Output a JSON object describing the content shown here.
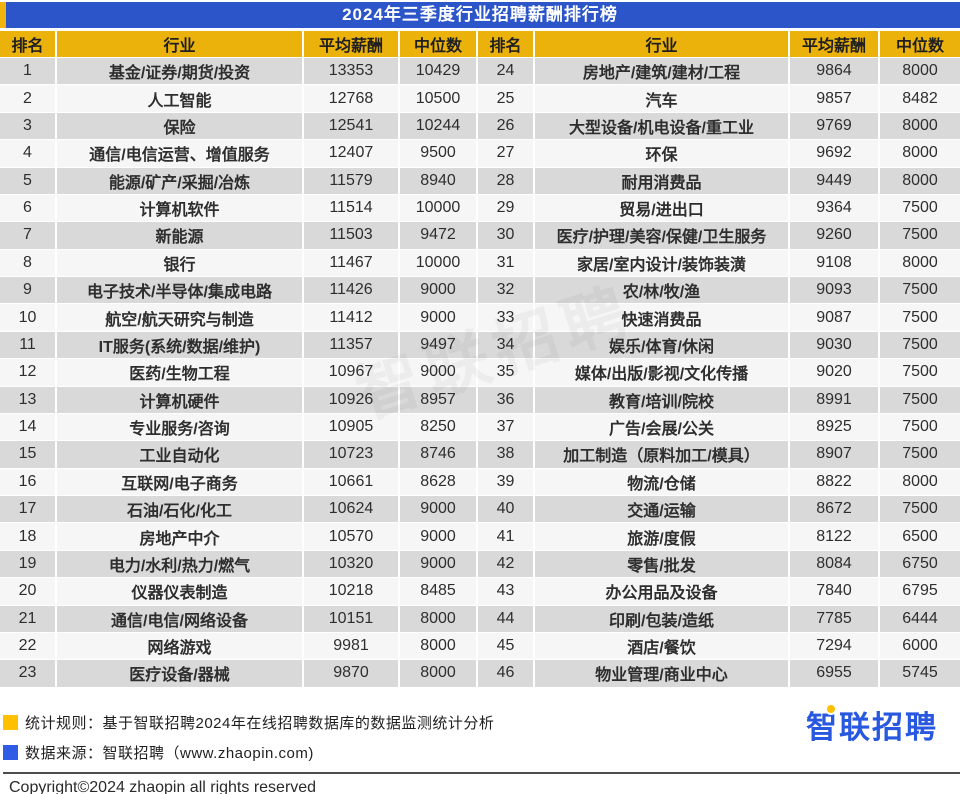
{
  "title": "2024年三季度行业招聘薪酬排行榜",
  "table": {
    "headers": [
      "排名",
      "行业",
      "平均薪酬",
      "中位数"
    ]
  },
  "footer": {
    "legend": [
      {
        "color": "#FFC000",
        "text": "统计规则：基于智联招聘2024年在线招聘数据库的数据监测统计分析"
      },
      {
        "color": "#2F5BE7",
        "text": "数据来源：智联招聘（www.zhaopin.com)"
      }
    ],
    "logo_text": "智联招聘",
    "copyright": "Copyright©2024 zhaopin all rights reserved"
  },
  "watermark_text": "智联招聘",
  "colors": {
    "title_bar": "#2B55C8",
    "header_gold": "#ECB20C",
    "row_odd": "#D9D9D9",
    "row_even": "#F6F6F6",
    "logo_blue": "#2857E0",
    "legend_yellow": "#FFC000",
    "legend_blue": "#2F5BE7"
  },
  "chart_data": {
    "type": "table",
    "title": "2024年三季度行业招聘薪酬排行榜",
    "columns": [
      "排名",
      "行业",
      "平均薪酬",
      "中位数"
    ],
    "layout": "two-column table, ranks 1-23 left, 24-46 right",
    "rows": [
      [
        1,
        "基金/证券/期货/投资",
        13353,
        10429
      ],
      [
        2,
        "人工智能",
        12768,
        10500
      ],
      [
        3,
        "保险",
        12541,
        10244
      ],
      [
        4,
        "通信/电信运营、增值服务",
        12407,
        9500
      ],
      [
        5,
        "能源/矿产/采掘/冶炼",
        11579,
        8940
      ],
      [
        6,
        "计算机软件",
        11514,
        10000
      ],
      [
        7,
        "新能源",
        11503,
        9472
      ],
      [
        8,
        "银行",
        11467,
        10000
      ],
      [
        9,
        "电子技术/半导体/集成电路",
        11426,
        9000
      ],
      [
        10,
        "航空/航天研究与制造",
        11412,
        9000
      ],
      [
        11,
        "IT服务(系统/数据/维护)",
        11357,
        9497
      ],
      [
        12,
        "医药/生物工程",
        10967,
        9000
      ],
      [
        13,
        "计算机硬件",
        10926,
        8957
      ],
      [
        14,
        "专业服务/咨询",
        10905,
        8250
      ],
      [
        15,
        "工业自动化",
        10723,
        8746
      ],
      [
        16,
        "互联网/电子商务",
        10661,
        8628
      ],
      [
        17,
        "石油/石化/化工",
        10624,
        9000
      ],
      [
        18,
        "房地产中介",
        10570,
        9000
      ],
      [
        19,
        "电力/水利/热力/燃气",
        10320,
        9000
      ],
      [
        20,
        "仪器仪表制造",
        10218,
        8485
      ],
      [
        21,
        "通信/电信/网络设备",
        10151,
        8000
      ],
      [
        22,
        "网络游戏",
        9981,
        8000
      ],
      [
        23,
        "医疗设备/器械",
        9870,
        8000
      ],
      [
        24,
        "房地产/建筑/建材/工程",
        9864,
        8000
      ],
      [
        25,
        "汽车",
        9857,
        8482
      ],
      [
        26,
        "大型设备/机电设备/重工业",
        9769,
        8000
      ],
      [
        27,
        "环保",
        9692,
        8000
      ],
      [
        28,
        "耐用消费品",
        9449,
        8000
      ],
      [
        29,
        "贸易/进出口",
        9364,
        7500
      ],
      [
        30,
        "医疗/护理/美容/保健/卫生服务",
        9260,
        7500
      ],
      [
        31,
        "家居/室内设计/装饰装潢",
        9108,
        8000
      ],
      [
        32,
        "农/林/牧/渔",
        9093,
        7500
      ],
      [
        33,
        "快速消费品",
        9087,
        7500
      ],
      [
        34,
        "娱乐/体育/休闲",
        9030,
        7500
      ],
      [
        35,
        "媒体/出版/影视/文化传播",
        9020,
        7500
      ],
      [
        36,
        "教育/培训/院校",
        8991,
        7500
      ],
      [
        37,
        "广告/会展/公关",
        8925,
        7500
      ],
      [
        38,
        "加工制造（原料加工/模具）",
        8907,
        7500
      ],
      [
        39,
        "物流/仓储",
        8822,
        8000
      ],
      [
        40,
        "交通/运输",
        8672,
        7500
      ],
      [
        41,
        "旅游/度假",
        8122,
        6500
      ],
      [
        42,
        "零售/批发",
        8084,
        6750
      ],
      [
        43,
        "办公用品及设备",
        7840,
        6795
      ],
      [
        44,
        "印刷/包装/造纸",
        7785,
        6444
      ],
      [
        45,
        "酒店/餐饮",
        7294,
        6000
      ],
      [
        46,
        "物业管理/商业中心",
        6955,
        5745
      ]
    ]
  }
}
